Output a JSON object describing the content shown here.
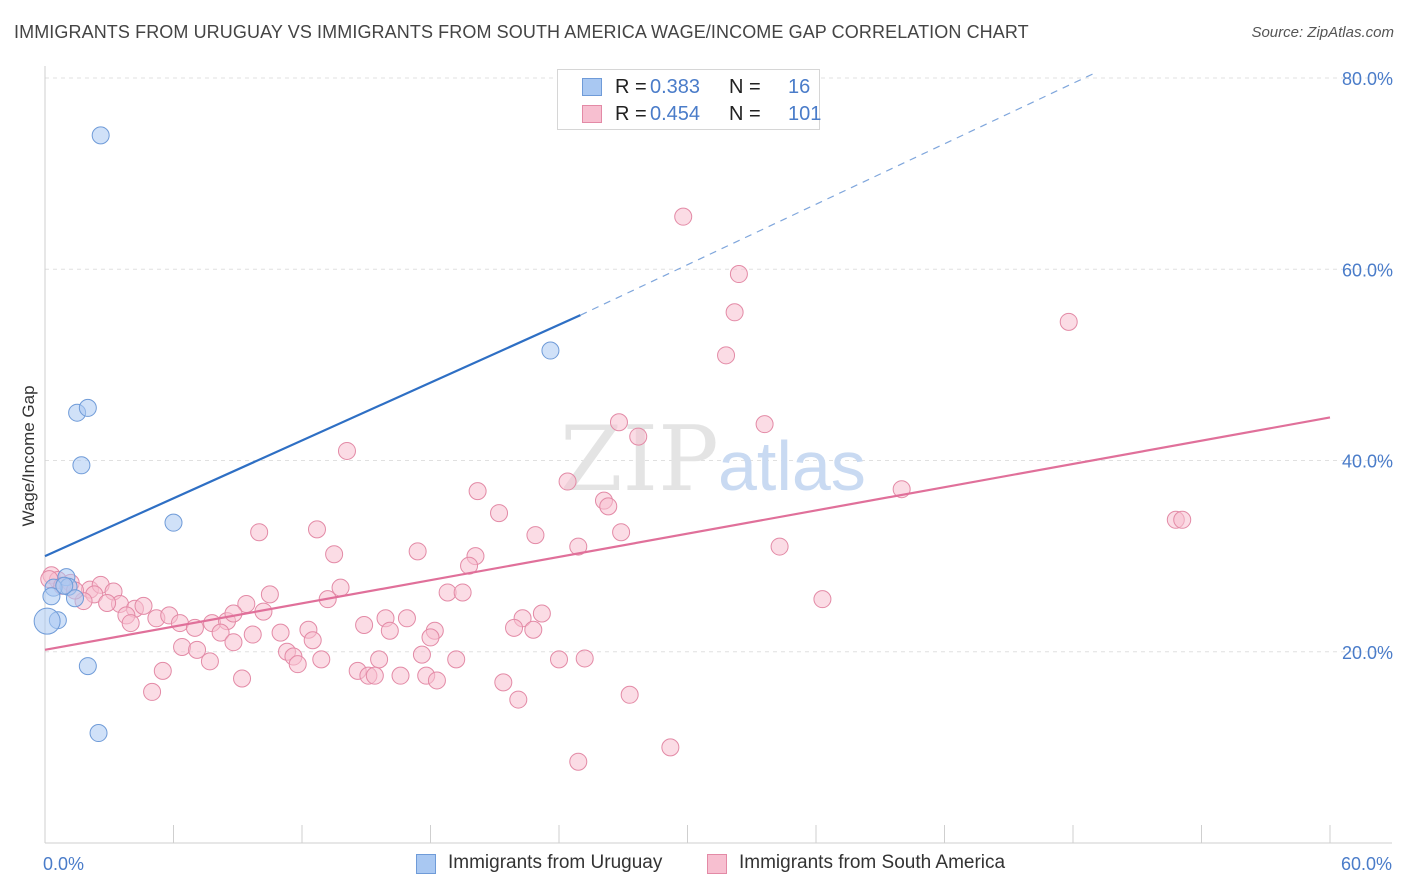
{
  "title": "IMMIGRANTS FROM URUGUAY VS IMMIGRANTS FROM SOUTH AMERICA WAGE/INCOME GAP CORRELATION CHART",
  "source": "Source: ZipAtlas.com",
  "watermark": {
    "zip": "ZIP",
    "atlas": "atlas"
  },
  "legend": {
    "rows": [
      {
        "r_label": "R =",
        "r_value": "0.383",
        "n_label": "N =",
        "n_value": "16",
        "color": "#a9c8f2",
        "border": "#6f9bd8"
      },
      {
        "r_label": "R =",
        "r_value": "0.454",
        "n_label": "N =",
        "n_value": "101",
        "color": "#f7bfd0",
        "border": "#e38aa6"
      }
    ]
  },
  "bottom_legend": [
    {
      "label": "Immigrants from Uruguay",
      "color": "#a9c8f2",
      "border": "#6f9bd8"
    },
    {
      "label": "Immigrants from South America",
      "color": "#f7bfd0",
      "border": "#e38aa6"
    }
  ],
  "chart_data": {
    "type": "scatter",
    "title": "IMMIGRANTS FROM URUGUAY VS IMMIGRANTS FROM SOUTH AMERICA WAGE/INCOME GAP CORRELATION CHART",
    "xlabel": "",
    "ylabel": "Wage/Income Gap",
    "xlim": [
      0,
      60
    ],
    "ylim": [
      0,
      80
    ],
    "x_ticks": [
      {
        "value": 0,
        "label": "0.0%"
      },
      {
        "value": 60,
        "label": "60.0%"
      }
    ],
    "y_ticks": [
      {
        "value": 20,
        "label": "20.0%"
      },
      {
        "value": 40,
        "label": "40.0%"
      },
      {
        "value": 60,
        "label": "60.0%"
      },
      {
        "value": 80,
        "label": "80.0%"
      }
    ],
    "grid": "horizontal dashed",
    "series": [
      {
        "name": "Immigrants from Uruguay",
        "color": "#a9c8f2",
        "stroke": "#6f9bd8",
        "trend": {
          "x0": 0,
          "y0": 30.0,
          "x1": 25,
          "y1": 55.2,
          "dash_to_x": 49,
          "dash_to_y": 80.5,
          "color": "#2e6fc4"
        },
        "points": [
          {
            "x": 2.6,
            "y": 74.0,
            "s": 1
          },
          {
            "x": 1.5,
            "y": 45.0,
            "s": 1
          },
          {
            "x": 2.0,
            "y": 45.5,
            "s": 1
          },
          {
            "x": 1.7,
            "y": 39.5,
            "s": 1
          },
          {
            "x": 6.0,
            "y": 33.5,
            "s": 1
          },
          {
            "x": 23.6,
            "y": 51.5,
            "s": 1
          },
          {
            "x": 1.0,
            "y": 27.8,
            "s": 1
          },
          {
            "x": 1.1,
            "y": 26.8,
            "s": 1
          },
          {
            "x": 0.4,
            "y": 26.7,
            "s": 1
          },
          {
            "x": 0.3,
            "y": 25.8,
            "s": 1
          },
          {
            "x": 1.4,
            "y": 25.6,
            "s": 1
          },
          {
            "x": 0.6,
            "y": 23.3,
            "s": 1
          },
          {
            "x": 0.1,
            "y": 23.2,
            "s": 2
          },
          {
            "x": 2.0,
            "y": 18.5,
            "s": 1
          },
          {
            "x": 2.5,
            "y": 11.5,
            "s": 1
          },
          {
            "x": 0.9,
            "y": 26.9,
            "s": 1
          }
        ]
      },
      {
        "name": "Immigrants from South America",
        "color": "#f7bfd0",
        "stroke": "#e38aa6",
        "trend": {
          "x0": 0,
          "y0": 20.2,
          "x1": 60,
          "y1": 44.5,
          "color": "#e0709a"
        },
        "points": [
          {
            "x": 29.8,
            "y": 65.5
          },
          {
            "x": 32.4,
            "y": 59.5
          },
          {
            "x": 32.2,
            "y": 55.5
          },
          {
            "x": 31.8,
            "y": 51.0
          },
          {
            "x": 47.8,
            "y": 54.5
          },
          {
            "x": 26.8,
            "y": 44.0
          },
          {
            "x": 27.7,
            "y": 42.5
          },
          {
            "x": 33.6,
            "y": 43.8
          },
          {
            "x": 14.1,
            "y": 41.0
          },
          {
            "x": 20.2,
            "y": 36.8
          },
          {
            "x": 24.4,
            "y": 37.8
          },
          {
            "x": 26.1,
            "y": 35.8
          },
          {
            "x": 26.3,
            "y": 35.2
          },
          {
            "x": 21.2,
            "y": 34.5
          },
          {
            "x": 40.0,
            "y": 37.0
          },
          {
            "x": 52.8,
            "y": 33.8
          },
          {
            "x": 53.1,
            "y": 33.8
          },
          {
            "x": 10.0,
            "y": 32.5
          },
          {
            "x": 12.7,
            "y": 32.8
          },
          {
            "x": 22.9,
            "y": 32.2
          },
          {
            "x": 26.9,
            "y": 32.5
          },
          {
            "x": 13.5,
            "y": 30.2
          },
          {
            "x": 17.4,
            "y": 30.5
          },
          {
            "x": 20.1,
            "y": 30.0
          },
          {
            "x": 24.9,
            "y": 31.0
          },
          {
            "x": 34.3,
            "y": 31.0
          },
          {
            "x": 19.8,
            "y": 29.0
          },
          {
            "x": 0.3,
            "y": 28.0
          },
          {
            "x": 0.6,
            "y": 27.5
          },
          {
            "x": 1.2,
            "y": 27.2
          },
          {
            "x": 2.1,
            "y": 26.5
          },
          {
            "x": 2.6,
            "y": 27.0
          },
          {
            "x": 3.2,
            "y": 26.3
          },
          {
            "x": 2.3,
            "y": 26.0
          },
          {
            "x": 1.8,
            "y": 25.3
          },
          {
            "x": 10.5,
            "y": 26.0
          },
          {
            "x": 13.8,
            "y": 26.7
          },
          {
            "x": 13.2,
            "y": 25.5
          },
          {
            "x": 18.8,
            "y": 26.2
          },
          {
            "x": 19.5,
            "y": 26.2
          },
          {
            "x": 36.3,
            "y": 25.5
          },
          {
            "x": 3.5,
            "y": 25.0
          },
          {
            "x": 4.2,
            "y": 24.5
          },
          {
            "x": 4.6,
            "y": 24.8
          },
          {
            "x": 9.4,
            "y": 25.0
          },
          {
            "x": 10.2,
            "y": 24.2
          },
          {
            "x": 3.8,
            "y": 23.8
          },
          {
            "x": 5.2,
            "y": 23.5
          },
          {
            "x": 5.8,
            "y": 23.8
          },
          {
            "x": 4.0,
            "y": 23.0
          },
          {
            "x": 6.3,
            "y": 23.0
          },
          {
            "x": 7.0,
            "y": 22.5
          },
          {
            "x": 7.8,
            "y": 23.0
          },
          {
            "x": 8.5,
            "y": 23.2
          },
          {
            "x": 8.8,
            "y": 24.0
          },
          {
            "x": 14.9,
            "y": 22.8
          },
          {
            "x": 15.9,
            "y": 23.5
          },
          {
            "x": 16.1,
            "y": 22.2
          },
          {
            "x": 16.9,
            "y": 23.5
          },
          {
            "x": 18.2,
            "y": 22.2
          },
          {
            "x": 22.3,
            "y": 23.5
          },
          {
            "x": 23.2,
            "y": 24.0
          },
          {
            "x": 21.9,
            "y": 22.5
          },
          {
            "x": 22.8,
            "y": 22.3
          },
          {
            "x": 8.2,
            "y": 22.0
          },
          {
            "x": 9.7,
            "y": 21.8
          },
          {
            "x": 11.0,
            "y": 22.0
          },
          {
            "x": 12.3,
            "y": 22.3
          },
          {
            "x": 18.0,
            "y": 21.5
          },
          {
            "x": 8.8,
            "y": 21.0
          },
          {
            "x": 12.5,
            "y": 21.2
          },
          {
            "x": 6.4,
            "y": 20.5
          },
          {
            "x": 7.1,
            "y": 20.2
          },
          {
            "x": 11.3,
            "y": 20.0
          },
          {
            "x": 11.6,
            "y": 19.5
          },
          {
            "x": 17.6,
            "y": 19.7
          },
          {
            "x": 7.7,
            "y": 19.0
          },
          {
            "x": 11.8,
            "y": 18.7
          },
          {
            "x": 12.9,
            "y": 19.2
          },
          {
            "x": 15.6,
            "y": 19.2
          },
          {
            "x": 19.2,
            "y": 19.2
          },
          {
            "x": 24.0,
            "y": 19.2
          },
          {
            "x": 25.2,
            "y": 19.3
          },
          {
            "x": 5.5,
            "y": 18.0
          },
          {
            "x": 14.6,
            "y": 18.0
          },
          {
            "x": 15.1,
            "y": 17.5
          },
          {
            "x": 15.4,
            "y": 17.5
          },
          {
            "x": 16.6,
            "y": 17.5
          },
          {
            "x": 17.8,
            "y": 17.5
          },
          {
            "x": 9.2,
            "y": 17.2
          },
          {
            "x": 18.3,
            "y": 17.0
          },
          {
            "x": 21.4,
            "y": 16.8
          },
          {
            "x": 5.0,
            "y": 15.8
          },
          {
            "x": 22.1,
            "y": 15.0
          },
          {
            "x": 27.3,
            "y": 15.5
          },
          {
            "x": 29.2,
            "y": 10.0
          },
          {
            "x": 24.9,
            "y": 8.5
          },
          {
            "x": 0.2,
            "y": 27.6
          },
          {
            "x": 0.8,
            "y": 26.9
          },
          {
            "x": 1.4,
            "y": 26.4
          },
          {
            "x": 2.9,
            "y": 25.1
          }
        ]
      }
    ]
  }
}
